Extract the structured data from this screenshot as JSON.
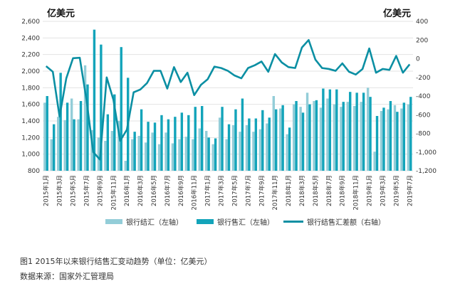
{
  "unit_left": "亿美元",
  "unit_right": "亿美元",
  "caption": "图1   2015年以来银行结售汇变动趋势（单位：亿美元）",
  "source": "数据来源：国家外汇管理局",
  "colors": {
    "settlement": "#93cdd8",
    "sale": "#13a4ba",
    "balance": "#0b8fa3"
  },
  "chart_data": {
    "type": "bar",
    "categories": [
      "2015年1月",
      "2015年2月",
      "2015年3月",
      "2015年4月",
      "2015年5月",
      "2015年6月",
      "2015年7月",
      "2015年8月",
      "2015年9月",
      "2015年10月",
      "2015年11月",
      "2015年12月",
      "2016年1月",
      "2016年2月",
      "2016年3月",
      "2016年4月",
      "2016年5月",
      "2016年6月",
      "2016年7月",
      "2016年8月",
      "2016年9月",
      "2016年10月",
      "2016年11月",
      "2016年12月",
      "2017年1月",
      "2017年2月",
      "2017年3月",
      "2017年4月",
      "2017年5月",
      "2017年6月",
      "2017年7月",
      "2017年8月",
      "2017年9月",
      "2017年10月",
      "2017年11月",
      "2017年12月",
      "2018年1月",
      "2018年2月",
      "2018年3月",
      "2018年4月",
      "2018年5月",
      "2018年6月",
      "2018年7月",
      "2018年8月",
      "2018年9月",
      "2018年10月",
      "2018年11月",
      "2018年12月",
      "2019年1月",
      "2019年2月",
      "2019年3月",
      "2019年4月",
      "2019年5月",
      "2019年6月",
      "2019年7月"
    ],
    "x_tick_labels": [
      "2015年1月",
      "2015年3月",
      "2015年5月",
      "2015年7月",
      "2015年9月",
      "2015年11月",
      "2016年1月",
      "2016年3月",
      "2016年5月",
      "2016年7月",
      "2016年9月",
      "2016年11月",
      "2017年1月",
      "2017年3月",
      "2017年5月",
      "2017年7月",
      "2017年9月",
      "2017年11月",
      "2018年1月",
      "2018年3月",
      "2018年5月",
      "2018年7月",
      "2018年9月",
      "2018年11月",
      "2019年1月",
      "2019年3月",
      "2019年5月",
      "2019年7月"
    ],
    "y_left": {
      "min": 800,
      "max": 2600,
      "step": 200,
      "tick_labels": [
        "800",
        "1,000",
        "1,200",
        "1,400",
        "1,600",
        "1,800",
        "2,000",
        "2,200",
        "2,400",
        "2,600"
      ]
    },
    "y_right": {
      "min": -1200,
      "max": 400,
      "step": 200,
      "tick_labels": [
        "-1,200",
        "-1,000",
        "-800",
        "-600",
        "-400",
        "-200",
        "0",
        "200",
        "400"
      ]
    },
    "series": [
      {
        "name": "银行结汇（左轴）",
        "type": "bar",
        "axis": "left",
        "values": [
          1620,
          1180,
          1450,
          1410,
          1670,
          1420,
          2070,
          1290,
          1200,
          1160,
          1280,
          1400,
          920,
          1180,
          1220,
          1140,
          1260,
          1120,
          1260,
          1130,
          1180,
          1210,
          1180,
          1310,
          1280,
          1120,
          1440,
          1180,
          1350,
          1270,
          1350,
          1270,
          1300,
          1370,
          1700,
          1550,
          1240,
          1600,
          1570,
          1740,
          1640,
          1560,
          1670,
          1600,
          1570,
          1630,
          1580,
          1630,
          1800,
          1030,
          1520,
          1540,
          1590,
          1550,
          1600
        ]
      },
      {
        "name": "银行售汇（左轴）",
        "type": "bar",
        "axis": "left",
        "values": [
          1700,
          1360,
          1980,
          1620,
          1420,
          1640,
          1840,
          2500,
          2320,
          1480,
          1720,
          2290,
          1920,
          1270,
          1540,
          1390,
          1380,
          1470,
          1420,
          1450,
          1500,
          1470,
          1570,
          1580,
          1200,
          1190,
          1570,
          1360,
          1540,
          1670,
          1430,
          1430,
          1530,
          1440,
          1540,
          1590,
          1320,
          1640,
          1500,
          1600,
          1650,
          1790,
          1780,
          1780,
          1630,
          1750,
          1740,
          1740,
          1690,
          1460,
          1560,
          1640,
          1510,
          1620,
          1690
        ]
      },
      {
        "name": "银行结售汇差额（右轴）",
        "type": "line",
        "axis": "right",
        "values": [
          -80,
          -140,
          -620,
          -210,
          5,
          10,
          -440,
          -1000,
          -1080,
          -200,
          -440,
          -880,
          -760,
          -360,
          -330,
          -260,
          -130,
          -130,
          -320,
          -90,
          -250,
          -150,
          -390,
          -280,
          -220,
          -85,
          -100,
          -130,
          -180,
          -210,
          -100,
          -70,
          -30,
          -140,
          50,
          -40,
          -90,
          -100,
          120,
          200,
          -10,
          -100,
          -110,
          -130,
          -50,
          -140,
          -170,
          -110,
          110,
          -150,
          -110,
          -120,
          30,
          -150,
          -60
        ]
      }
    ],
    "legend_position": "bottom",
    "grid": {
      "horizontal": true,
      "vertical": false
    }
  }
}
